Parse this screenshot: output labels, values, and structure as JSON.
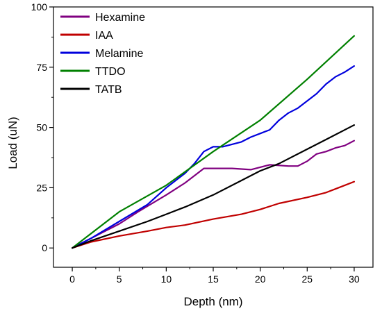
{
  "chart_data": {
    "type": "line",
    "title": "",
    "xlabel": "Depth (nm)",
    "ylabel": "Load (uN)",
    "xlim": [
      -2,
      32
    ],
    "ylim": [
      -8,
      100
    ],
    "xticks": [
      0,
      5,
      10,
      15,
      20,
      25,
      30
    ],
    "yticks": [
      0,
      25,
      50,
      75,
      100
    ],
    "grid": false,
    "legend_position": "top-left",
    "series": [
      {
        "name": "Hexamine",
        "color": "#800080",
        "points": [
          [
            0,
            0
          ],
          [
            2,
            4
          ],
          [
            5,
            10
          ],
          [
            7,
            15
          ],
          [
            10,
            22
          ],
          [
            12,
            27
          ],
          [
            13,
            30
          ],
          [
            14,
            33
          ],
          [
            15,
            33
          ],
          [
            17,
            33
          ],
          [
            19,
            32.5
          ],
          [
            20,
            33.5
          ],
          [
            21,
            34.5
          ],
          [
            23,
            34
          ],
          [
            24,
            34
          ],
          [
            25,
            36
          ],
          [
            26,
            39
          ],
          [
            27,
            40
          ],
          [
            28,
            41.5
          ],
          [
            29,
            42.5
          ],
          [
            30,
            44.5
          ]
        ]
      },
      {
        "name": "IAA",
        "color": "#c00000",
        "points": [
          [
            0,
            0
          ],
          [
            2,
            2.5
          ],
          [
            5,
            5
          ],
          [
            8,
            7
          ],
          [
            10,
            8.5
          ],
          [
            12,
            9.5
          ],
          [
            15,
            12
          ],
          [
            18,
            14
          ],
          [
            20,
            16
          ],
          [
            22,
            18.5
          ],
          [
            25,
            21
          ],
          [
            27,
            23
          ],
          [
            28,
            24.5
          ],
          [
            30,
            27.5
          ]
        ]
      },
      {
        "name": "Melamine",
        "color": "#0000dd",
        "points": [
          [
            0,
            0
          ],
          [
            2,
            4
          ],
          [
            5,
            11
          ],
          [
            8,
            18
          ],
          [
            10,
            25
          ],
          [
            12,
            31
          ],
          [
            13,
            35
          ],
          [
            14,
            40
          ],
          [
            15,
            42
          ],
          [
            16,
            42
          ],
          [
            17,
            43
          ],
          [
            18,
            44
          ],
          [
            19,
            46
          ],
          [
            20,
            47.5
          ],
          [
            21,
            49
          ],
          [
            22,
            53
          ],
          [
            23,
            56
          ],
          [
            24,
            58
          ],
          [
            25,
            61
          ],
          [
            26,
            64
          ],
          [
            27,
            68
          ],
          [
            28,
            71
          ],
          [
            29,
            73
          ],
          [
            30,
            75.5
          ]
        ]
      },
      {
        "name": "TTDO",
        "color": "#008000",
        "points": [
          [
            0,
            0
          ],
          [
            5,
            15
          ],
          [
            10,
            26
          ],
          [
            15,
            40
          ],
          [
            20,
            53
          ],
          [
            25,
            70
          ],
          [
            30,
            88
          ]
        ]
      },
      {
        "name": "TATB",
        "color": "#000000",
        "points": [
          [
            0,
            0
          ],
          [
            2,
            3
          ],
          [
            5,
            7
          ],
          [
            8,
            11
          ],
          [
            10,
            14
          ],
          [
            12,
            17
          ],
          [
            15,
            22
          ],
          [
            18,
            28
          ],
          [
            20,
            32
          ],
          [
            22,
            35
          ],
          [
            25,
            41
          ],
          [
            27,
            45
          ],
          [
            30,
            51
          ]
        ]
      }
    ]
  }
}
